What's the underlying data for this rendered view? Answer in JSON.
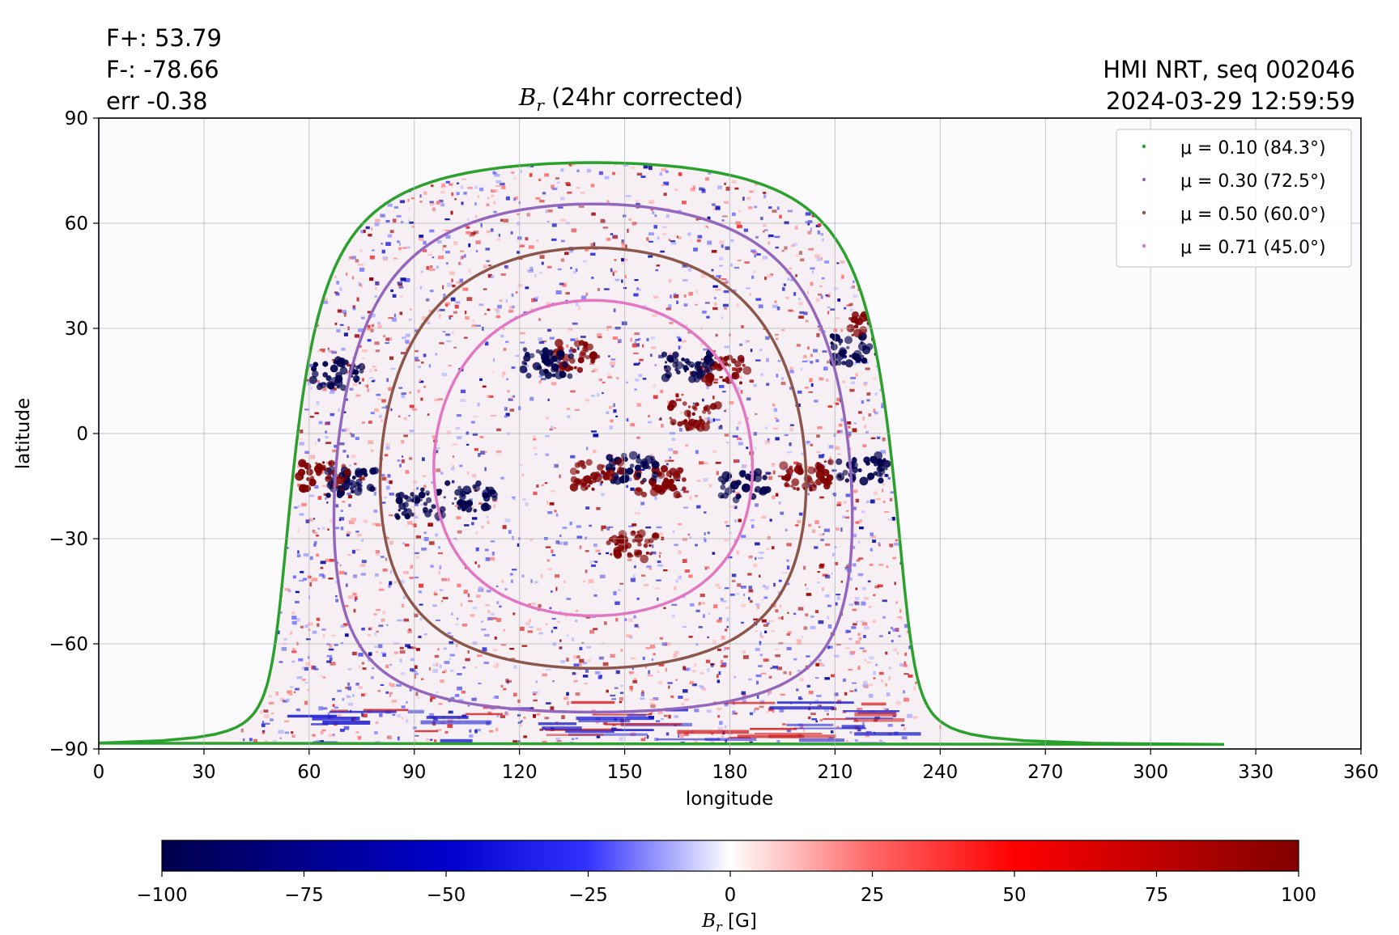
{
  "stats": {
    "fplus": "F+: 53.79",
    "fminus": "F-: -78.66",
    "err": "err -0.38"
  },
  "header": {
    "source": "HMI NRT, seq 002046",
    "datetime": "2024-03-29 12:59:59"
  },
  "title": {
    "symbol": "B",
    "sub": "r",
    "rest": " (24hr corrected)"
  },
  "colors": {
    "mu_0_10": "#2ca02c",
    "mu_0_30": "#9467bd",
    "mu_0_50": "#8c564b",
    "mu_0_71": "#e377c2",
    "negative": "#00004c",
    "positive": "#800000"
  },
  "chart_data": {
    "type": "heatmap",
    "xlabel": "longitude",
    "ylabel": "latitude",
    "xlim": [
      0,
      360
    ],
    "ylim": [
      -90,
      90
    ],
    "xticks": [
      "0",
      "30",
      "60",
      "90",
      "120",
      "150",
      "180",
      "210",
      "240",
      "270",
      "300",
      "330",
      "360"
    ],
    "yticks": [
      "90",
      "60",
      "30",
      "0",
      "−30",
      "−60",
      "−90"
    ],
    "grid": true,
    "legend_position": "top-right",
    "series": [
      {
        "name": "μ = 0.10 (84.3°)",
        "mu": 0.1,
        "angle_deg": 84.3
      },
      {
        "name": "μ = 0.30 (72.5°)",
        "mu": 0.3,
        "angle_deg": 72.5
      },
      {
        "name": "μ = 0.50 (60.0°)",
        "mu": 0.5,
        "angle_deg": 60.0
      },
      {
        "name": "μ = 0.71 (45.0°)",
        "mu": 0.71,
        "angle_deg": 45.0
      }
    ],
    "disk_center": {
      "lon": 141,
      "lat": -7
    },
    "colorbar": {
      "label_symbol": "B",
      "label_sub": "r",
      "label_unit": " [G]",
      "range": [
        -100,
        100
      ],
      "ticks": [
        "−100",
        "−75",
        "−50",
        "−25",
        "0",
        "25",
        "50",
        "75",
        "100"
      ]
    },
    "features": [
      {
        "lon": 136,
        "lat": 22,
        "polarity": "positive"
      },
      {
        "lon": 128,
        "lat": 20,
        "polarity": "negative"
      },
      {
        "lon": 178,
        "lat": 18,
        "polarity": "positive"
      },
      {
        "lon": 168,
        "lat": 19,
        "polarity": "negative"
      },
      {
        "lon": 170,
        "lat": 5,
        "polarity": "positive"
      },
      {
        "lon": 160,
        "lat": -14,
        "polarity": "positive"
      },
      {
        "lon": 152,
        "lat": -10,
        "polarity": "negative"
      },
      {
        "lon": 142,
        "lat": -12,
        "polarity": "positive"
      },
      {
        "lon": 184,
        "lat": -15,
        "polarity": "negative"
      },
      {
        "lon": 106,
        "lat": -18,
        "polarity": "negative"
      },
      {
        "lon": 92,
        "lat": -20,
        "polarity": "negative"
      },
      {
        "lon": 152,
        "lat": -32,
        "polarity": "positive"
      },
      {
        "lon": 202,
        "lat": -12,
        "polarity": "positive"
      },
      {
        "lon": 218,
        "lat": -10,
        "polarity": "negative"
      },
      {
        "lon": 216,
        "lat": 24,
        "polarity": "negative"
      },
      {
        "lon": 221,
        "lat": 30,
        "polarity": "positive"
      },
      {
        "lon": 72,
        "lat": -14,
        "polarity": "negative"
      },
      {
        "lon": 64,
        "lat": -12,
        "polarity": "positive"
      },
      {
        "lon": 68,
        "lat": 17,
        "polarity": "negative"
      }
    ]
  }
}
